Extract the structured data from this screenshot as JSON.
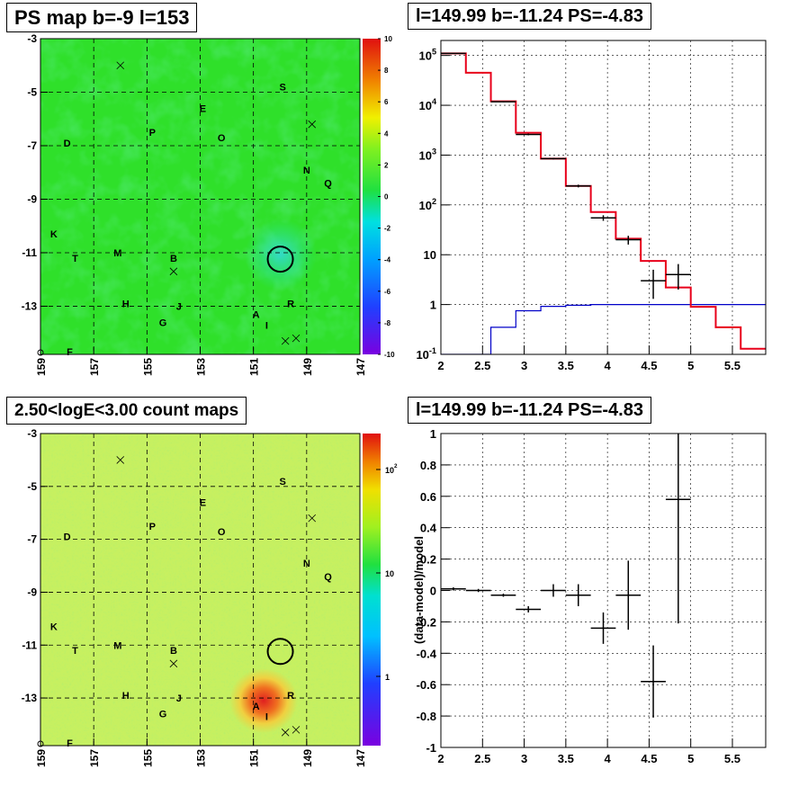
{
  "panels": {
    "tl": {
      "title": "PS map b=-9 l=153"
    },
    "tr": {
      "title": "l=149.99 b=-11.24 PS=-4.83"
    },
    "bl": {
      "title": "2.50<logE<3.00 count maps"
    },
    "br": {
      "title": "l=149.99 b=-11.24 PS=-4.83"
    }
  },
  "colors": {
    "map_green": "#2fe02a",
    "map_cyan": "#35e9bd",
    "count_yellow": "#c8f060",
    "count_red": "#e8302a",
    "model_red": "#e8001a",
    "bkg_blue": "#0000c8",
    "data_black": "#000000"
  },
  "chart_data": [
    {
      "type": "heatmap",
      "panel": "tl",
      "title": "PS map b=-9 l=153",
      "x_ticks": [
        "159",
        "157",
        "155",
        "153",
        "151",
        "149",
        "147"
      ],
      "y_ticks": [
        "-3",
        "-5",
        "-7",
        "-9",
        "-11",
        "-13"
      ],
      "xlim": [
        159,
        147
      ],
      "ylim": [
        -14.8,
        -3
      ],
      "colorbar": {
        "min": -10,
        "max": 10,
        "ticks": [
          "10",
          "8",
          "6",
          "4",
          "2",
          "0",
          "-2",
          "-4",
          "-6",
          "-8",
          "-10"
        ]
      },
      "source_labels": [
        {
          "text": "S",
          "l": 149.9,
          "b": -4.8
        },
        {
          "text": "E",
          "l": 152.9,
          "b": -5.6
        },
        {
          "text": "O",
          "l": 152.2,
          "b": -6.7
        },
        {
          "text": "P",
          "l": 154.8,
          "b": -6.5
        },
        {
          "text": "D",
          "l": 158.0,
          "b": -6.9
        },
        {
          "text": "N",
          "l": 149.0,
          "b": -7.9
        },
        {
          "text": "Q",
          "l": 148.2,
          "b": -8.4
        },
        {
          "text": "K",
          "l": 158.5,
          "b": -10.3
        },
        {
          "text": "T",
          "l": 157.7,
          "b": -11.2
        },
        {
          "text": "M",
          "l": 156.1,
          "b": -11.0
        },
        {
          "text": "B",
          "l": 154.0,
          "b": -11.2
        },
        {
          "text": "H",
          "l": 155.8,
          "b": -12.9
        },
        {
          "text": "J",
          "l": 153.8,
          "b": -13.0
        },
        {
          "text": "G",
          "l": 154.4,
          "b": -13.6
        },
        {
          "text": "A",
          "l": 150.9,
          "b": -13.3
        },
        {
          "text": "I",
          "l": 150.5,
          "b": -13.7
        },
        {
          "text": "R",
          "l": 149.6,
          "b": -12.9
        },
        {
          "text": "F",
          "l": 157.9,
          "b": -14.7
        }
      ],
      "crosses": [
        {
          "l": 156.0,
          "b": -4.0
        },
        {
          "l": 148.8,
          "b": -6.2
        },
        {
          "l": 154.0,
          "b": -11.7
        },
        {
          "l": 149.8,
          "b": -14.3
        },
        {
          "l": 149.4,
          "b": -14.2
        }
      ],
      "circle": {
        "l": 149.99,
        "b": -11.24
      }
    },
    {
      "type": "line",
      "panel": "tr",
      "title": "l=149.99 b=-11.24 PS=-4.83",
      "xlim": [
        2.0,
        5.9
      ],
      "ylim": [
        0.1,
        200000
      ],
      "yscale": "log",
      "x_ticks": [
        "2",
        "2.5",
        "3",
        "3.5",
        "4",
        "4.5",
        "5",
        "5.5"
      ],
      "y_ticks": [
        "10^-1",
        "1",
        "10",
        "10^2",
        "10^3",
        "10^4",
        "10^5"
      ],
      "grid": true,
      "model_edges": [
        2.0,
        2.3,
        2.6,
        2.9,
        3.2,
        3.5,
        3.8,
        4.1,
        4.4,
        4.7,
        5.0,
        5.3,
        5.6,
        5.9
      ],
      "model_values": [
        110000,
        45000,
        12000,
        2800,
        850,
        240,
        72,
        21,
        7.5,
        2.2,
        0.9,
        0.35,
        0.13
      ],
      "background_edges": [
        2.0,
        2.3,
        2.6,
        2.9,
        3.2,
        3.5,
        3.8,
        4.1,
        4.4,
        4.7,
        5.0,
        5.3,
        5.6,
        5.9
      ],
      "background_values": [
        0.1,
        0.1,
        0.35,
        0.75,
        0.92,
        0.97,
        1.0,
        1.0,
        1.0,
        1.0,
        1.0,
        1.0,
        1.0
      ],
      "data_points": [
        {
          "x": 2.15,
          "y": 110000,
          "xerr": 0.15,
          "ylo": 109000,
          "yhi": 111000
        },
        {
          "x": 2.75,
          "y": 11800,
          "xerr": 0.15,
          "ylo": 11500,
          "yhi": 12100
        },
        {
          "x": 3.05,
          "y": 2600,
          "xerr": 0.15,
          "ylo": 2500,
          "yhi": 2700
        },
        {
          "x": 3.35,
          "y": 850,
          "xerr": 0.15,
          "ylo": 820,
          "yhi": 880
        },
        {
          "x": 3.65,
          "y": 240,
          "xerr": 0.15,
          "ylo": 225,
          "yhi": 255
        },
        {
          "x": 3.95,
          "y": 55,
          "xerr": 0.15,
          "ylo": 48,
          "yhi": 62
        },
        {
          "x": 4.25,
          "y": 20,
          "xerr": 0.15,
          "ylo": 16,
          "yhi": 24
        },
        {
          "x": 4.55,
          "y": 3.0,
          "xerr": 0.15,
          "ylo": 1.3,
          "yhi": 5.0
        },
        {
          "x": 4.85,
          "y": 4.0,
          "xerr": 0.15,
          "ylo": 2.0,
          "yhi": 6.5
        }
      ]
    },
    {
      "type": "heatmap",
      "panel": "bl",
      "title": "2.50<logE<3.00 count maps",
      "x_ticks": [
        "159",
        "157",
        "155",
        "153",
        "151",
        "149",
        "147"
      ],
      "y_ticks": [
        "-3",
        "-5",
        "-7",
        "-9",
        "-11",
        "-13"
      ],
      "xlim": [
        159,
        147
      ],
      "ylim": [
        -14.8,
        -3
      ],
      "colorbar": {
        "scale": "log",
        "ticks": [
          "10^2",
          "10",
          "1"
        ]
      },
      "bright_source": {
        "l": 150.9,
        "b": -13.3
      }
    },
    {
      "type": "scatter",
      "panel": "br",
      "title": "l=149.99 b=-11.24 PS=-4.83",
      "ylabel": "(data-model)/model",
      "xlim": [
        2.0,
        5.9
      ],
      "ylim": [
        -1.0,
        1.0
      ],
      "x_ticks": [
        "2",
        "2.5",
        "3",
        "3.5",
        "4",
        "4.5",
        "5",
        "5.5"
      ],
      "y_ticks": [
        "1",
        "0.8",
        "0.6",
        "0.4",
        "0.2",
        "0",
        "-0.2",
        "-0.4",
        "-0.6",
        "-0.8",
        "-1"
      ],
      "grid": true,
      "points": [
        {
          "x": 2.15,
          "y": 0.01,
          "xerr": 0.15,
          "yerr": 0.01
        },
        {
          "x": 2.45,
          "y": 0.0,
          "xerr": 0.15,
          "yerr": 0.01
        },
        {
          "x": 2.75,
          "y": -0.03,
          "xerr": 0.15,
          "yerr": 0.01
        },
        {
          "x": 3.05,
          "y": -0.12,
          "xerr": 0.15,
          "yerr": 0.02
        },
        {
          "x": 3.35,
          "y": 0.0,
          "xerr": 0.15,
          "yerr": 0.04
        },
        {
          "x": 3.65,
          "y": -0.03,
          "xerr": 0.15,
          "yerr": 0.07
        },
        {
          "x": 3.95,
          "y": -0.24,
          "xerr": 0.15,
          "yerr": 0.1
        },
        {
          "x": 4.25,
          "y": -0.03,
          "xerr": 0.15,
          "yerr": 0.22
        },
        {
          "x": 4.55,
          "y": -0.58,
          "xerr": 0.15,
          "yerr": 0.23
        },
        {
          "x": 4.85,
          "y": 0.58,
          "xerr": 0.15,
          "yerr": 0.79
        }
      ]
    }
  ]
}
